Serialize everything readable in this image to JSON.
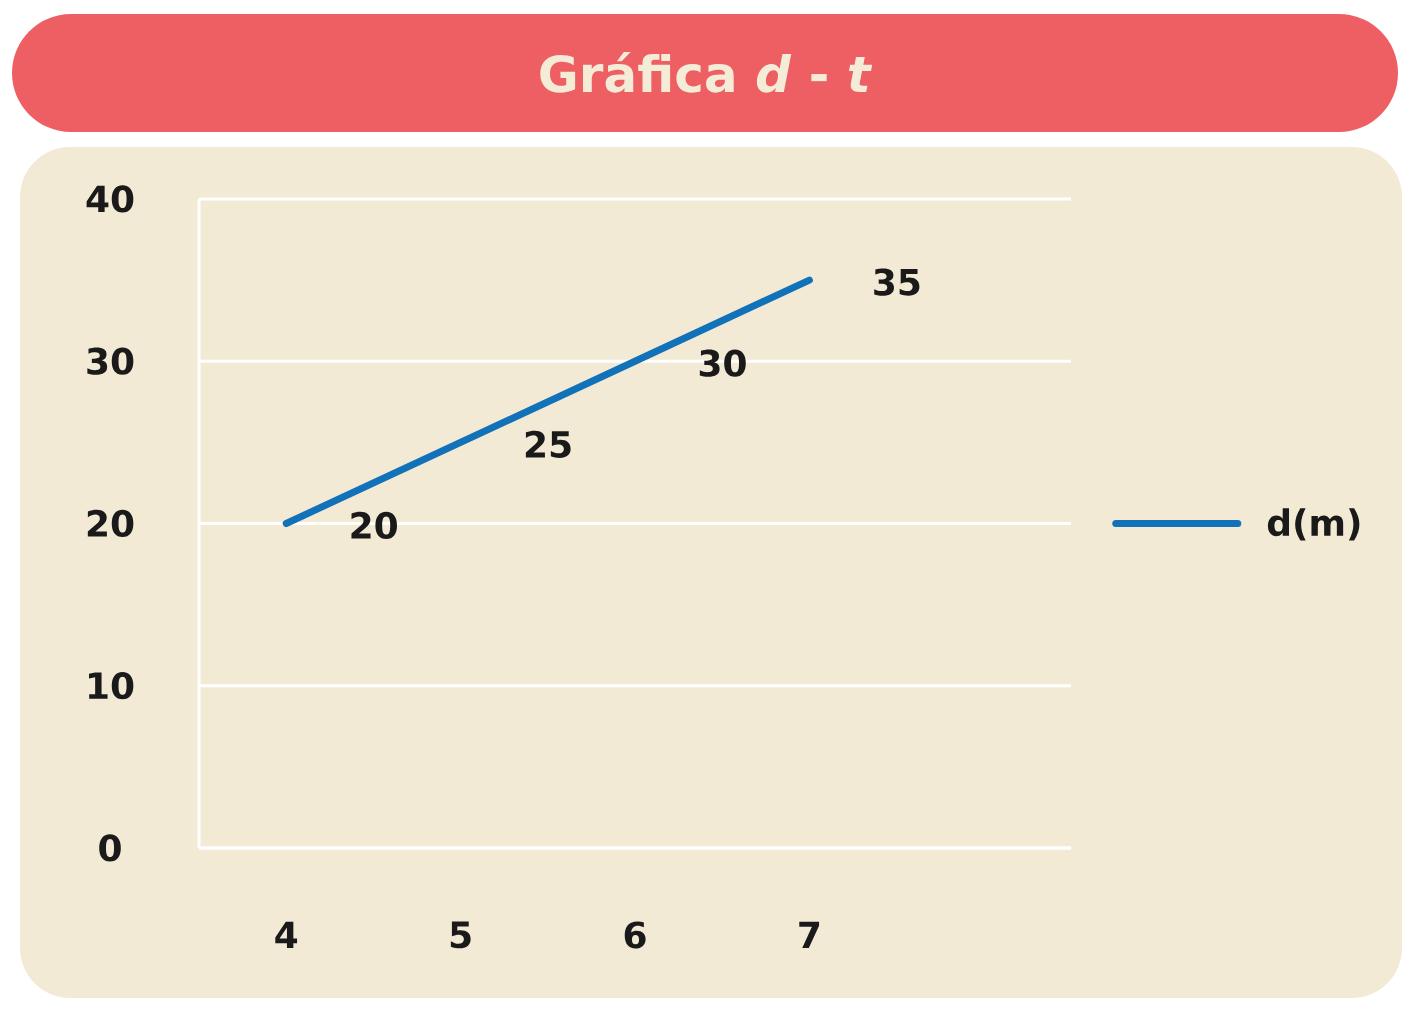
{
  "chart_data": {
    "type": "line",
    "title": "Gráfica *d* - *t*",
    "x": [
      4,
      5,
      6,
      7
    ],
    "xlim": [
      3.5,
      8.5
    ],
    "xticks": [
      4,
      5,
      6,
      7
    ],
    "ylim": [
      0,
      40
    ],
    "yticks": [
      0,
      10,
      20,
      30,
      40
    ],
    "series": [
      {
        "name": "d(m)",
        "color": "#1272b9",
        "values": [
          20,
          25,
          30,
          35
        ]
      }
    ],
    "data_labels": true,
    "grid": "y",
    "legend": "right",
    "marker": "none"
  }
}
